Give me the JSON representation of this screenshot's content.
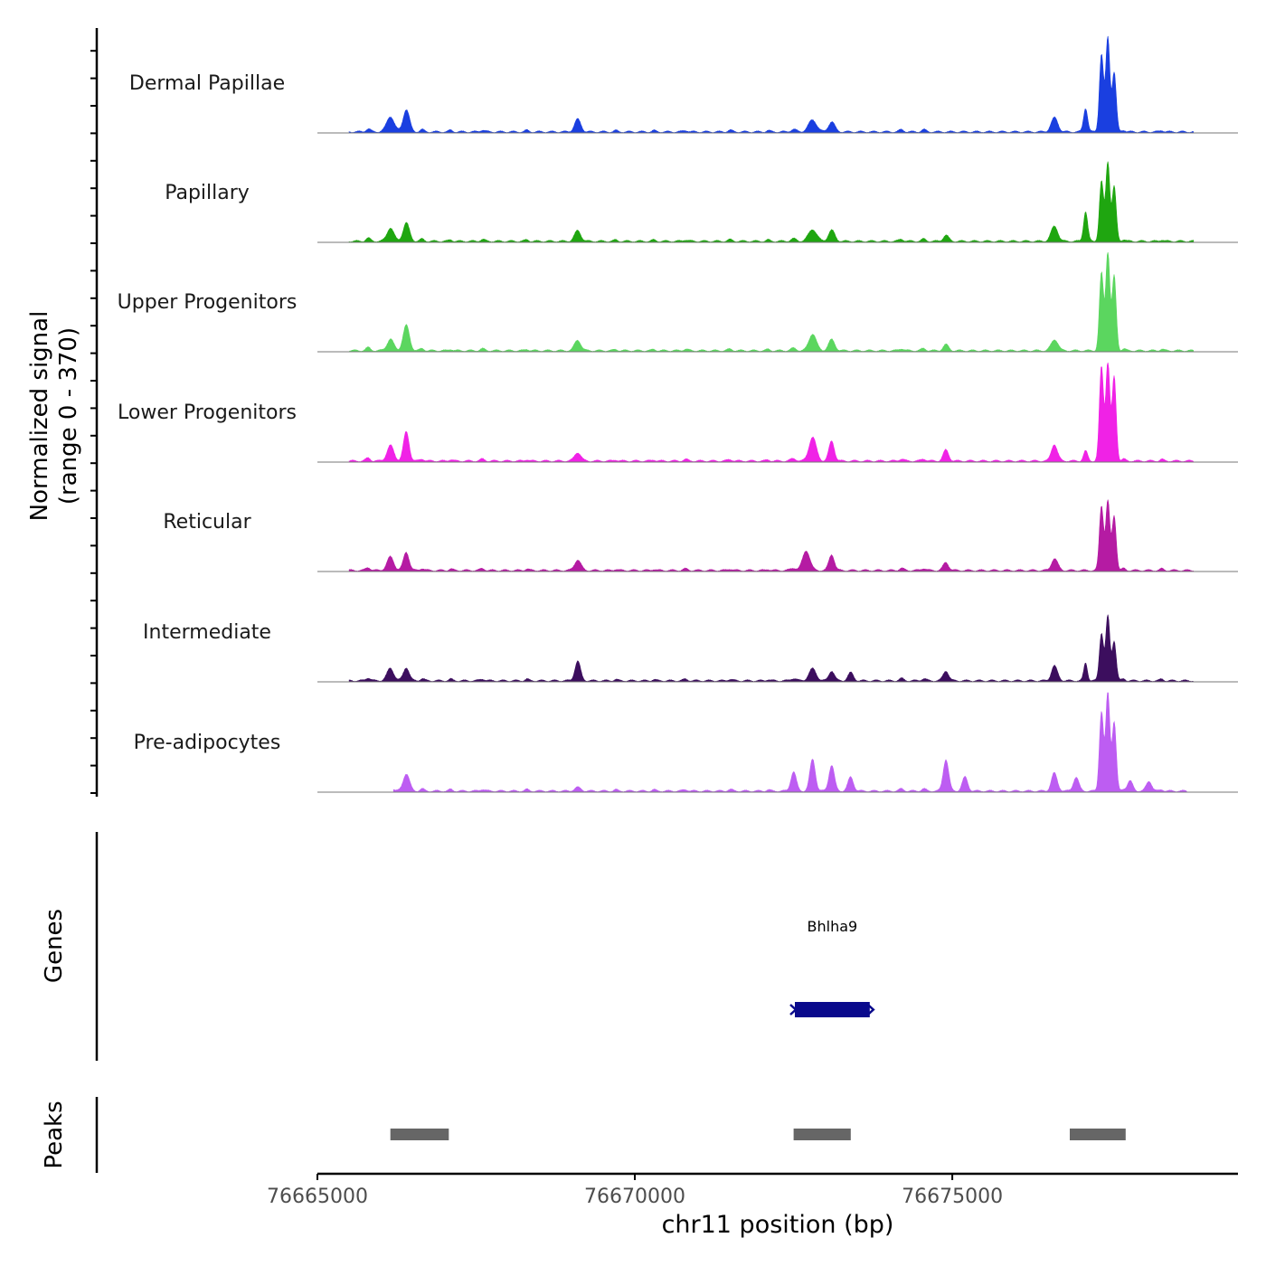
{
  "chart_data": {
    "type": "area",
    "ylabel": "Normalized signal",
    "ylabel_range": "(range 0 - 370)",
    "ylim": [
      0,
      370
    ],
    "xlabel": "chr11 position (bp)",
    "xlim": [
      76665000,
      76679500
    ],
    "x_ticks": [
      76665000,
      76670000,
      76675000
    ],
    "x_tick_labels": [
      "76665000",
      "76670000",
      "76675000"
    ],
    "background_peaks": [
      [
        76665800,
        0.1,
        50
      ],
      [
        76666150,
        0.12,
        60
      ],
      [
        76666400,
        0.18,
        70
      ],
      [
        76666650,
        0.07,
        45
      ],
      [
        76667100,
        0.05,
        40
      ],
      [
        76667600,
        0.06,
        50
      ],
      [
        76668300,
        0.05,
        40
      ],
      [
        76669100,
        0.12,
        70
      ],
      [
        76669700,
        0.04,
        40
      ],
      [
        76670300,
        0.04,
        40
      ],
      [
        76670800,
        0.05,
        50
      ],
      [
        76671500,
        0.05,
        50
      ],
      [
        76672100,
        0.04,
        40
      ],
      [
        76672500,
        0.08,
        60
      ],
      [
        76674200,
        0.07,
        50
      ],
      [
        76674550,
        0.07,
        50
      ],
      [
        76676650,
        0.12,
        60
      ],
      [
        76677700,
        0.06,
        40
      ],
      [
        76678300,
        0.05,
        40
      ]
    ],
    "series": [
      {
        "name": "Dermal Papillae",
        "color": "#1a3fe0",
        "extent": [
          76665500,
          76678800
        ],
        "peaks": [
          [
            76666150,
            0.12,
            90
          ],
          [
            76666400,
            0.17,
            70
          ],
          [
            76669100,
            0.09,
            70
          ],
          [
            76672800,
            0.12,
            90
          ],
          [
            76673100,
            0.1,
            70
          ],
          [
            76676600,
            0.12,
            70
          ],
          [
            76677100,
            0.24,
            45
          ],
          [
            76677350,
            0.78,
            45
          ],
          [
            76677450,
            0.95,
            45
          ],
          [
            76677550,
            0.6,
            45
          ]
        ]
      },
      {
        "name": "Papillary",
        "color": "#1fa610",
        "extent": [
          76665500,
          76678800
        ],
        "peaks": [
          [
            76666150,
            0.1,
            80
          ],
          [
            76666400,
            0.13,
            70
          ],
          [
            76669100,
            0.07,
            70
          ],
          [
            76672800,
            0.12,
            90
          ],
          [
            76673100,
            0.11,
            70
          ],
          [
            76674900,
            0.06,
            60
          ],
          [
            76676600,
            0.13,
            70
          ],
          [
            76677100,
            0.3,
            45
          ],
          [
            76677350,
            0.6,
            45
          ],
          [
            76677450,
            0.8,
            45
          ],
          [
            76677550,
            0.55,
            45
          ]
        ]
      },
      {
        "name": "Upper Progenitors",
        "color": "#5bd65f",
        "extent": [
          76665500,
          76678800
        ],
        "peaks": [
          [
            76666150,
            0.08,
            80
          ],
          [
            76666400,
            0.2,
            70
          ],
          [
            76669100,
            0.07,
            70
          ],
          [
            76672800,
            0.17,
            80
          ],
          [
            76673100,
            0.11,
            70
          ],
          [
            76674900,
            0.06,
            60
          ],
          [
            76676600,
            0.09,
            70
          ],
          [
            76677350,
            0.78,
            45
          ],
          [
            76677450,
            1.0,
            45
          ],
          [
            76677550,
            0.75,
            45
          ]
        ]
      },
      {
        "name": "Lower Progenitors",
        "color": "#f022e6",
        "extent": [
          76665500,
          76678800
        ],
        "peaks": [
          [
            76666150,
            0.12,
            80
          ],
          [
            76666400,
            0.24,
            60
          ],
          [
            76669100,
            0.05,
            70
          ],
          [
            76672800,
            0.24,
            80
          ],
          [
            76673100,
            0.2,
            60
          ],
          [
            76674900,
            0.11,
            60
          ],
          [
            76676600,
            0.15,
            60
          ],
          [
            76677100,
            0.1,
            45
          ],
          [
            76677350,
            0.95,
            45
          ],
          [
            76677450,
            1.0,
            45
          ],
          [
            76677550,
            0.85,
            45
          ]
        ]
      },
      {
        "name": "Reticular",
        "color": "#b51ba3",
        "extent": [
          76665500,
          76678800
        ],
        "peaks": [
          [
            76666150,
            0.1,
            80
          ],
          [
            76666400,
            0.13,
            60
          ],
          [
            76669100,
            0.07,
            70
          ],
          [
            76672700,
            0.2,
            80
          ],
          [
            76673100,
            0.16,
            60
          ],
          [
            76674900,
            0.08,
            60
          ],
          [
            76676600,
            0.1,
            60
          ],
          [
            76677350,
            0.65,
            45
          ],
          [
            76677450,
            0.7,
            45
          ],
          [
            76677550,
            0.55,
            45
          ]
        ]
      },
      {
        "name": "Intermediate",
        "color": "#3c0e5e",
        "extent": [
          76665500,
          76678800
        ],
        "peaks": [
          [
            76666150,
            0.09,
            80
          ],
          [
            76666400,
            0.08,
            60
          ],
          [
            76669100,
            0.16,
            60
          ],
          [
            76672800,
            0.12,
            80
          ],
          [
            76673100,
            0.1,
            60
          ],
          [
            76673400,
            0.08,
            60
          ],
          [
            76674900,
            0.1,
            60
          ],
          [
            76676600,
            0.13,
            60
          ],
          [
            76677100,
            0.18,
            40
          ],
          [
            76677350,
            0.48,
            45
          ],
          [
            76677450,
            0.65,
            45
          ],
          [
            76677550,
            0.4,
            45
          ]
        ]
      },
      {
        "name": "Pre-adipocytes",
        "color": "#bd5df2",
        "extent": [
          76666200,
          76678700
        ],
        "peaks": [
          [
            76666400,
            0.12,
            70
          ],
          [
            76672500,
            0.17,
            60
          ],
          [
            76672800,
            0.32,
            60
          ],
          [
            76673100,
            0.26,
            60
          ],
          [
            76673400,
            0.14,
            60
          ],
          [
            76674900,
            0.32,
            60
          ],
          [
            76675200,
            0.14,
            60
          ],
          [
            76676600,
            0.16,
            60
          ],
          [
            76676950,
            0.14,
            60
          ],
          [
            76677350,
            0.8,
            45
          ],
          [
            76677450,
            1.0,
            45
          ],
          [
            76677550,
            0.7,
            45
          ],
          [
            76677800,
            0.1,
            60
          ],
          [
            76678100,
            0.1,
            60
          ]
        ]
      }
    ],
    "genes_track": {
      "label": "Genes",
      "genes": [
        {
          "name": "Bhlha9",
          "start": 76672520,
          "end": 76673700,
          "color": "#0a0a8c"
        }
      ]
    },
    "peaks_track": {
      "label": "Peaks",
      "color": "#666666",
      "regions": [
        [
          76666150,
          76667070
        ],
        [
          76672500,
          76673400
        ],
        [
          76676850,
          76677730
        ]
      ]
    }
  }
}
